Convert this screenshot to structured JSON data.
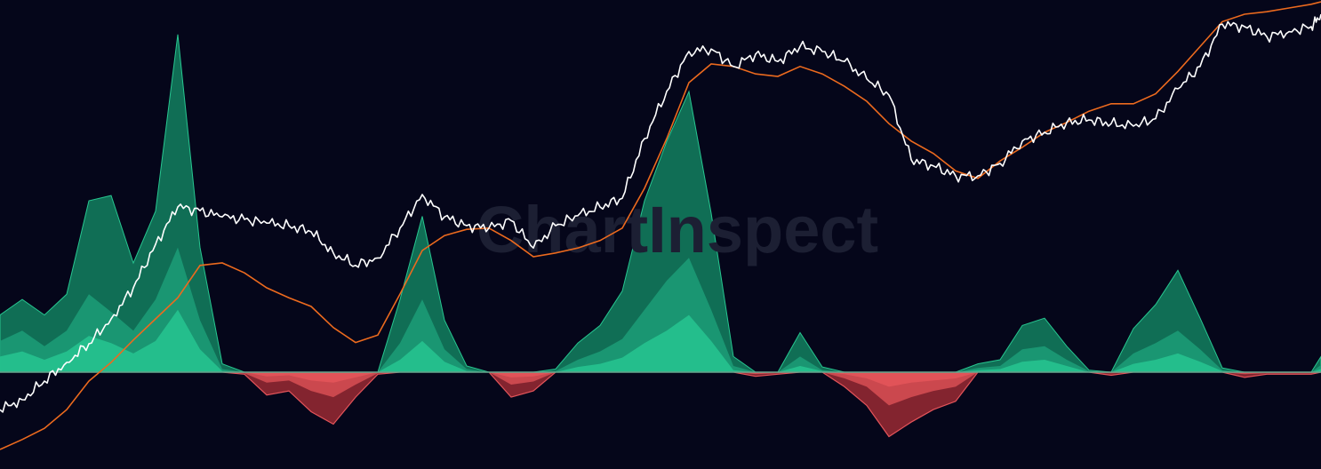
{
  "watermark": "ChartInspect",
  "colors": {
    "background": "#05061a",
    "price": "#ffffff",
    "moving_average": "#ec6a1e",
    "zero_line": "#3fb99a",
    "positive_dark": "#127a5c",
    "positive_mid": "#1c9d78",
    "positive_light": "#27c690",
    "negative_dark": "#8a2630",
    "negative_light": "#e3545a"
  },
  "chart_data": {
    "type": "area",
    "title": "",
    "xlabel": "",
    "ylabel": "",
    "grid": false,
    "legend": "none",
    "x": [
      0,
      25,
      50,
      75,
      100,
      125,
      150,
      175,
      200,
      225,
      250,
      275,
      300,
      325,
      350,
      375,
      400,
      425,
      450,
      475,
      500,
      525,
      550,
      575,
      600,
      625,
      650,
      675,
      700,
      725,
      750,
      775,
      800,
      825,
      850,
      875,
      900,
      925,
      950,
      975,
      1000,
      1025,
      1050,
      1075,
      1100,
      1125,
      1150,
      1175,
      1200,
      1225,
      1250,
      1275,
      1300,
      1325,
      1350,
      1375,
      1400,
      1425,
      1450,
      1475,
      1486
    ],
    "series": [
      {
        "role": "price",
        "values": [
          42,
          50,
          65,
          80,
          95,
          115,
          140,
          175,
          205,
          202,
          197,
          195,
          192,
          190,
          185,
          168,
          158,
          164,
          188,
          215,
          197,
          190,
          188,
          194,
          172,
          190,
          198,
          205,
          212,
          260,
          298,
          330,
          332,
          318,
          328,
          322,
          334,
          330,
          322,
          308,
          295,
          243,
          238,
          230,
          230,
          240,
          258,
          265,
          273,
          275,
          272,
          270,
          276,
          300,
          318,
          352,
          350,
          342,
          346,
          350,
          360
        ]
      },
      {
        "role": "moving_average",
        "values": [
          10,
          18,
          27,
          42,
          65,
          80,
          98,
          115,
          132,
          158,
          160,
          152,
          140,
          132,
          125,
          108,
          96,
          102,
          135,
          170,
          182,
          187,
          188,
          178,
          165,
          168,
          172,
          178,
          188,
          220,
          260,
          305,
          320,
          318,
          312,
          310,
          318,
          312,
          302,
          290,
          272,
          258,
          248,
          234,
          228,
          242,
          253,
          265,
          273,
          282,
          288,
          288,
          296,
          314,
          334,
          354,
          360,
          362,
          365,
          368,
          370
        ]
      },
      {
        "role": "oscillator_major",
        "values": [
          55,
          70,
          55,
          75,
          165,
          170,
          105,
          155,
          325,
          120,
          8,
          -2,
          -22,
          -18,
          -38,
          -50,
          -24,
          -2,
          70,
          150,
          50,
          6,
          0,
          -24,
          -18,
          3,
          28,
          45,
          78,
          165,
          222,
          270,
          153,
          15,
          -4,
          -2,
          38,
          5,
          -14,
          -32,
          -62,
          -48,
          -36,
          -28,
          8,
          12,
          45,
          52,
          25,
          2,
          -3,
          42,
          65,
          98,
          52,
          4,
          -5,
          -2,
          -2,
          -2,
          15
        ]
      },
      {
        "role": "oscillator_mid",
        "values": [
          30,
          40,
          25,
          40,
          75,
          58,
          40,
          70,
          120,
          50,
          3,
          -1,
          -10,
          -8,
          -18,
          -24,
          -12,
          -1,
          28,
          70,
          22,
          3,
          0,
          -12,
          -9,
          1,
          12,
          20,
          32,
          60,
          88,
          110,
          60,
          6,
          -2,
          -1,
          15,
          2,
          -6,
          -14,
          -32,
          -24,
          -18,
          -14,
          4,
          6,
          22,
          25,
          12,
          1,
          -1,
          18,
          28,
          40,
          22,
          2,
          -2,
          -1,
          -1,
          -1,
          7
        ]
      },
      {
        "role": "oscillator_minor",
        "values": [
          15,
          20,
          12,
          20,
          35,
          28,
          18,
          30,
          60,
          22,
          1,
          0,
          -4,
          -3,
          -8,
          -10,
          -5,
          0,
          12,
          30,
          10,
          1,
          0,
          -5,
          -4,
          0,
          5,
          8,
          14,
          28,
          40,
          55,
          30,
          2,
          -1,
          0,
          6,
          1,
          -2,
          -6,
          -14,
          -10,
          -8,
          -6,
          2,
          3,
          10,
          12,
          6,
          0,
          0,
          8,
          12,
          18,
          10,
          1,
          -1,
          0,
          0,
          0,
          3
        ]
      }
    ]
  }
}
